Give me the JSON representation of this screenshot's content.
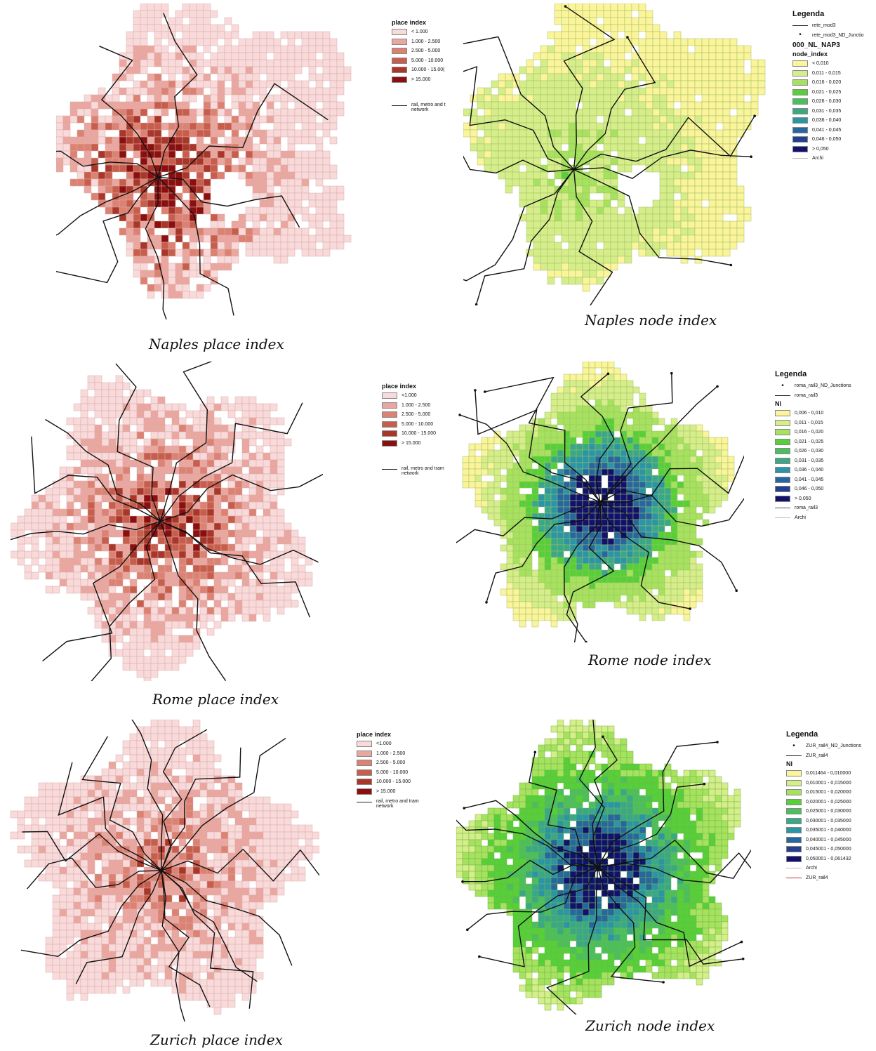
{
  "captions": {
    "naples_place": "Naples place index",
    "naples_node": "Naples node index",
    "rome_place": "Rome place index",
    "rome_node": "Rome node index",
    "zurich_place": "Zurich place index",
    "zurich_node": "Zurich node index"
  },
  "place_legends": [
    {
      "title": "place index",
      "classes": [
        "< 1.000",
        "1.000 - 2.500",
        "2.500 - 5.000",
        "5.000 - 10.000",
        "10.000 - 15.00(",
        "> 15.000"
      ],
      "network": "rail, metro and t network"
    },
    {
      "title": "place index",
      "classes": [
        "<1.000",
        "1.000 - 2.500",
        "2.500 - 5.000",
        "5.000 - 10.000",
        "10.000 - 15.000",
        "> 15.000"
      ],
      "network": "rail, metro and tram network"
    },
    {
      "title": "place index",
      "classes": [
        "<1.000",
        "1.000 - 2.500",
        "2.500 - 5.000",
        "5.000 - 10.000",
        "10.000 - 15.000",
        "> 15.000"
      ],
      "network": "rail, metro and tram network"
    }
  ],
  "place_colors": [
    "#f9dada",
    "#eaa79f",
    "#dc8273",
    "#c75e4c",
    "#a8372a",
    "#8a1010"
  ],
  "node_colors": [
    "#fbf49a",
    "#d6ee8a",
    "#a6e25e",
    "#56cf38",
    "#4cbf5c",
    "#3aa887",
    "#2b95a6",
    "#27679f",
    "#223f90",
    "#12126e"
  ],
  "naples_node_legend": {
    "title": "Legenda",
    "line_item": "rete_mod3",
    "dot_item": "rete_mod3_ND_Junctio",
    "layer": "000_NL_NAP3",
    "field": "node_index",
    "classes": [
      "< 0,010",
      "0,011 - 0,015",
      "0,016 - 0,020",
      "0,021 - 0,025",
      "0,026 - 0,030",
      "0,031 - 0,035",
      "0,036 - 0,040",
      "0,041 - 0,045",
      "0,046 - 0,050",
      "> 0,050"
    ],
    "archi": "Archi"
  },
  "rome_node_legend": {
    "title": "Legenda",
    "dot_item": "roma_rail3_ND_Junctions",
    "line_item": "roma_rail3",
    "field": "NI",
    "classes": [
      "0,006 - 0,010",
      "0,011 - 0,015",
      "0,016 - 0,020",
      "0,021 - 0,025",
      "0,026 - 0,030",
      "0,031 - 0,035",
      "0,036 - 0,040",
      "0,041 - 0,045",
      "0,046 - 0,050",
      "> 0,050"
    ],
    "line_item2": "roma_rail3",
    "archi": "Archi"
  },
  "zurich_node_legend": {
    "title": "Legenda",
    "dot_item": "ZUR_rail4_ND_Junctions",
    "line_item": "ZUR_rail4",
    "field": "NI",
    "classes": [
      "0,011464 - 0,010000",
      "0,010001 - 0,015000",
      "0,015001 - 0,020000",
      "0,020001 - 0,025000",
      "0,025001 - 0,030000",
      "0,030001 - 0,035000",
      "0,035001 - 0,040000",
      "0,040001 - 0,045000",
      "0,045001 - 0,050000",
      "0,050001 - 0,061432"
    ],
    "archi": "Archi",
    "line_item2": "ZUR_rail4",
    "line_item2_color": "#c03030"
  }
}
